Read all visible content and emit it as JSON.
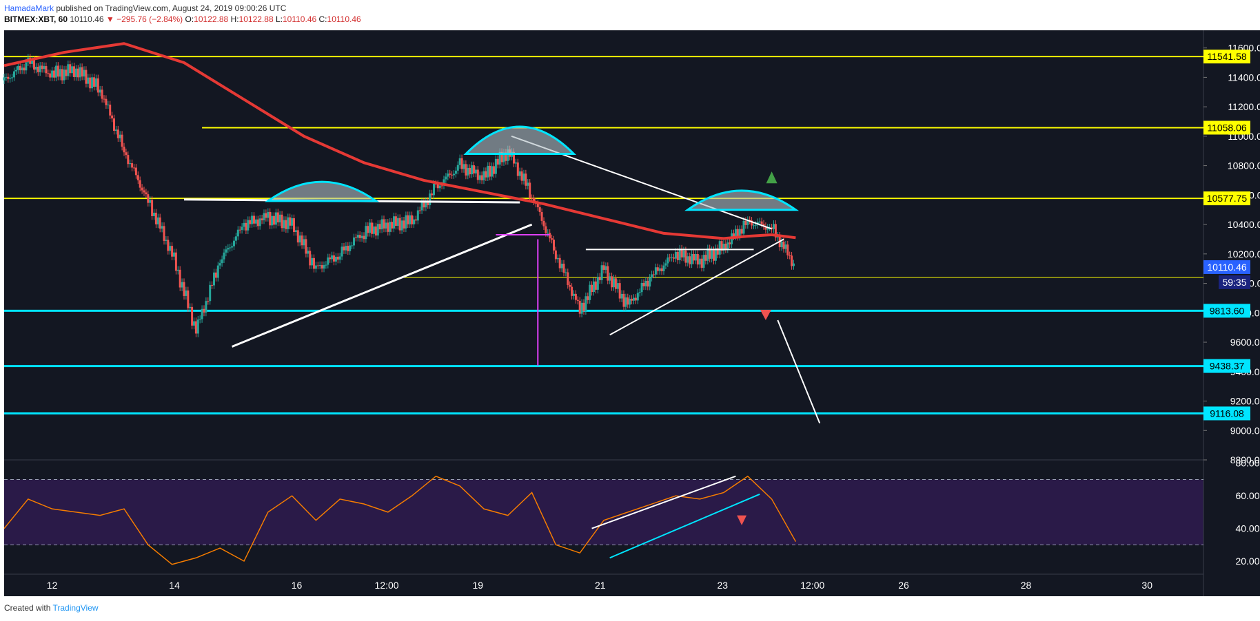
{
  "header": {
    "author": "HamadaMark",
    "published": "published on TradingView.com, August 24, 2019 09:00:26 UTC",
    "symbol": "BITMEX:XBT, 60",
    "last": "10110.46",
    "change": "▼ −295.76 (−2.84%)",
    "o_label": "O:",
    "o": "10122.88",
    "h_label": "H:",
    "h": "10122.88",
    "l_label": "L:",
    "l": "10110.46",
    "c_label": "C:",
    "c": "10110.46"
  },
  "footer": {
    "created": "Created with",
    "brand": "TradingView"
  },
  "colors": {
    "background": "#131722",
    "up": "#26a69a",
    "down": "#ef5350",
    "ma": "#e53935",
    "yellow": "#ffff00",
    "cyan": "#00e5ff",
    "magenta": "#e040fb",
    "rsi": "#f57c00",
    "rsi_band": "#2a1a48"
  },
  "chart_data": [
    {
      "type": "line",
      "title": "",
      "price_ticks": [
        "11600.00",
        "11400.00",
        "11200.00",
        "11000.00",
        "10800.00",
        "10600.00",
        "10400.00",
        "10200.00",
        "10000.00",
        "9800.00",
        "9600.00",
        "9400.00",
        "9200.00",
        "9000.00",
        "8800.00"
      ],
      "date_ticks": [
        "12",
        "14",
        "16",
        "12:00",
        "19",
        "21",
        "23",
        "12:00",
        "26",
        "28",
        "30"
      ],
      "ylim": [
        8800,
        11720
      ],
      "horizontal_levels": [
        {
          "value": 11541.58,
          "label": "11541.58",
          "color": "yellow"
        },
        {
          "value": 11058.06,
          "label": "11058.06",
          "color": "yellow"
        },
        {
          "value": 10577.75,
          "label": "10577.75",
          "color": "yellow"
        },
        {
          "value": 9813.6,
          "label": "9813.60",
          "color": "cyan"
        },
        {
          "value": 9438.37,
          "label": "9438.37",
          "color": "cyan"
        },
        {
          "value": 9116.08,
          "label": "9116.08",
          "color": "cyan"
        }
      ],
      "last_price": {
        "value": 10110.46,
        "label": "10110.46",
        "countdown": "59:35"
      },
      "ma_series": {
        "x": [
          0,
          0.05,
          0.1,
          0.15,
          0.2,
          0.25,
          0.3,
          0.35,
          0.4,
          0.45,
          0.5,
          0.55,
          0.6,
          0.62,
          0.64,
          0.66
        ],
        "y": [
          11480,
          11570,
          11630,
          11500,
          11250,
          11000,
          10820,
          10700,
          10620,
          10540,
          10440,
          10340,
          10305,
          10320,
          10330,
          10310
        ]
      },
      "price_path": {
        "x": [
          0,
          0.02,
          0.04,
          0.06,
          0.08,
          0.1,
          0.12,
          0.14,
          0.16,
          0.18,
          0.2,
          0.22,
          0.24,
          0.26,
          0.28,
          0.3,
          0.32,
          0.34,
          0.36,
          0.38,
          0.4,
          0.42,
          0.44,
          0.46,
          0.48,
          0.5,
          0.52,
          0.54,
          0.56,
          0.58,
          0.6,
          0.62,
          0.64,
          0.66
        ],
        "y": [
          11380,
          11500,
          11420,
          11450,
          11320,
          10900,
          10560,
          10200,
          9680,
          10150,
          10400,
          10450,
          10400,
          10100,
          10200,
          10350,
          10400,
          10420,
          10650,
          10800,
          10720,
          10900,
          10600,
          10200,
          9820,
          10100,
          9850,
          10050,
          10200,
          10150,
          10250,
          10420,
          10380,
          10110
        ]
      }
    },
    {
      "type": "line",
      "title": "",
      "ylabel": "",
      "ticks": [
        "80.00",
        "60.00",
        "40.00",
        "20.00"
      ],
      "ylim": [
        12,
        82
      ],
      "bands": [
        70,
        30
      ],
      "series": [
        {
          "x": [
            0,
            0.02,
            0.04,
            0.06,
            0.08,
            0.1,
            0.12,
            0.14,
            0.16,
            0.18,
            0.2,
            0.22,
            0.24,
            0.26,
            0.28,
            0.3,
            0.32,
            0.34,
            0.36,
            0.38,
            0.4,
            0.42,
            0.44,
            0.46,
            0.48,
            0.5,
            0.52,
            0.54,
            0.56,
            0.58,
            0.6,
            0.62,
            0.64,
            0.66
          ],
          "values": [
            40,
            58,
            52,
            50,
            48,
            52,
            30,
            18,
            22,
            28,
            20,
            50,
            60,
            45,
            58,
            55,
            50,
            60,
            72,
            66,
            52,
            48,
            62,
            30,
            25,
            45,
            50,
            55,
            60,
            58,
            62,
            72,
            58,
            32
          ]
        }
      ]
    }
  ]
}
